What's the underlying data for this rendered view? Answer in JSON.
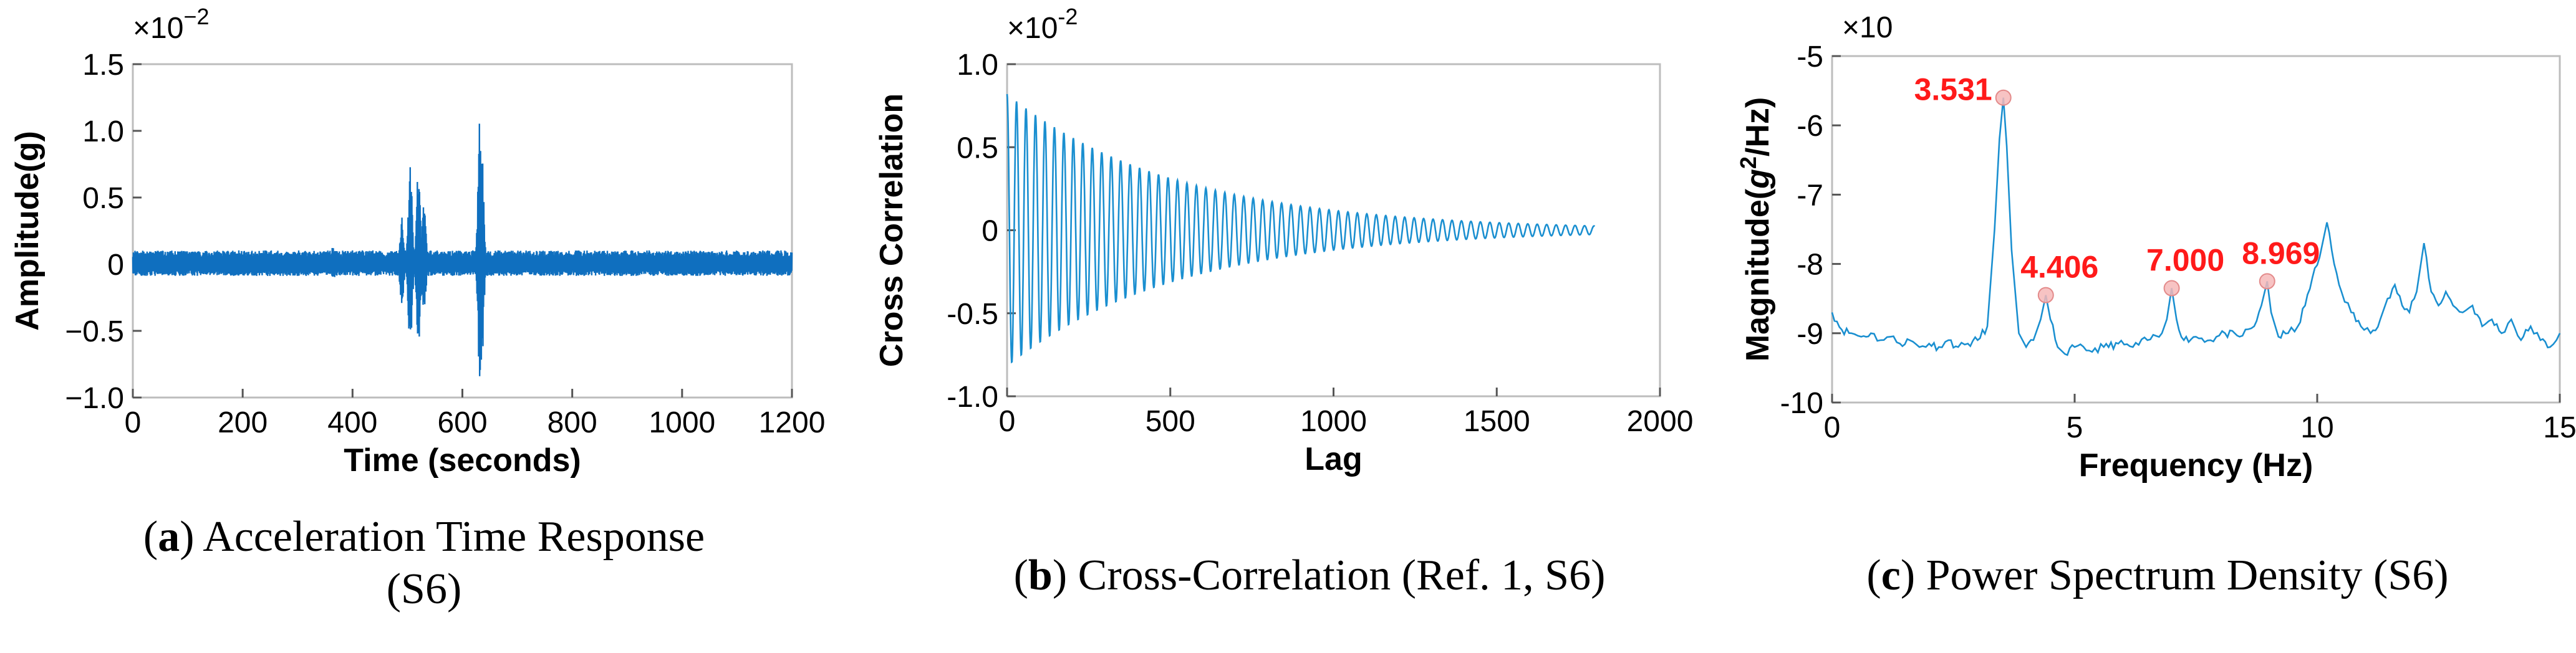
{
  "chart_data": [
    {
      "type": "line",
      "id": "a",
      "title": "",
      "xlabel": "Time (seconds)",
      "ylabel": "Amplitude(g)",
      "scale_label": "×10",
      "scale_exponent": "−2",
      "xlim": [
        0,
        1200
      ],
      "ylim": [
        -1.0,
        1.5
      ],
      "x_ticks": [
        0,
        200,
        400,
        600,
        800,
        1000,
        1200
      ],
      "x_tick_labels": [
        "0",
        "200",
        "400",
        "600",
        "800",
        "1000",
        "1200"
      ],
      "y_ticks": [
        1.5,
        1.0,
        0.5,
        0,
        -0.5,
        -1.0
      ],
      "y_tick_labels": [
        "1.5",
        "1.0",
        "0.5",
        "0",
        "−0.5",
        "−1.0"
      ],
      "series": [
        {
          "name": "Acceleration",
          "color": "#0f6fbf",
          "noise_band": 0.09,
          "bursts": [
            {
              "t": 365,
              "amp": 0.15
            },
            {
              "t": 490,
              "amp": 0.35
            },
            {
              "t": 505,
              "amp": 0.75
            },
            {
              "t": 520,
              "amp": 0.75
            },
            {
              "t": 530,
              "amp": 0.45
            },
            {
              "t": 628,
              "amp": 0.2
            },
            {
              "t": 632,
              "amp": 1.1
            },
            {
              "t": 635,
              "amp": 0.95
            }
          ]
        }
      ],
      "caption_label": "a",
      "caption_text": "Acceleration Time Response",
      "caption_text_2": "(S6)"
    },
    {
      "type": "line",
      "id": "b",
      "title": "",
      "xlabel": "Lag",
      "ylabel": "Cross Correlation",
      "scale_label": "×10",
      "scale_exponent": "-2",
      "xlim": [
        0,
        2000
      ],
      "ylim": [
        -1.0,
        1.0
      ],
      "x_ticks": [
        0,
        500,
        1000,
        1500,
        2000
      ],
      "x_tick_labels": [
        "0",
        "500",
        "1000",
        "1500",
        "2000"
      ],
      "y_ticks": [
        1.0,
        0.5,
        0,
        -0.5,
        -1.0
      ],
      "y_tick_labels": [
        "1.0",
        "0.5",
        "0",
        "-0.5",
        "-1.0"
      ],
      "series": [
        {
          "name": "Cross Correlation",
          "color": "#1a8fd0",
          "initial_amplitude": 0.82,
          "decay_constant": 520,
          "period": 29,
          "lag_end": 1800
        }
      ],
      "caption_label": "b",
      "caption_text": "Cross-Correlation (Ref. 1, S6)"
    },
    {
      "type": "line",
      "id": "c",
      "title": "",
      "xlabel": "Frequency (Hz)",
      "ylabel_main": "Magnitude(",
      "ylabel_g": "g",
      "ylabel_sup": "2",
      "ylabel_end": "/Hz)",
      "scale_label": "×10",
      "xlim": [
        0,
        15
      ],
      "ylim": [
        -10,
        -5
      ],
      "x_ticks": [
        0,
        5,
        10,
        15
      ],
      "x_tick_labels": [
        "0",
        "5",
        "10",
        "15"
      ],
      "y_ticks": [
        -5,
        -6,
        -7,
        -8,
        -9,
        -10
      ],
      "y_tick_labels": [
        "-5",
        "-6",
        "-7",
        "-8",
        "-9",
        "-10"
      ],
      "series": [
        {
          "name": "PSD",
          "color": "#1a8fd0",
          "points": [
            [
              0,
              -8.7
            ],
            [
              0.2,
              -8.95
            ],
            [
              0.4,
              -9.0
            ],
            [
              0.6,
              -9.05
            ],
            [
              0.8,
              -9.0
            ],
            [
              1.0,
              -9.1
            ],
            [
              1.2,
              -9.05
            ],
            [
              1.4,
              -9.15
            ],
            [
              1.6,
              -9.1
            ],
            [
              1.8,
              -9.2
            ],
            [
              2.0,
              -9.15
            ],
            [
              2.2,
              -9.2
            ],
            [
              2.4,
              -9.1
            ],
            [
              2.6,
              -9.2
            ],
            [
              2.8,
              -9.15
            ],
            [
              3.0,
              -9.1
            ],
            [
              3.2,
              -8.9
            ],
            [
              3.35,
              -7.5
            ],
            [
              3.45,
              -6.2
            ],
            [
              3.531,
              -5.6
            ],
            [
              3.6,
              -6.3
            ],
            [
              3.7,
              -7.8
            ],
            [
              3.85,
              -9.0
            ],
            [
              4.0,
              -9.2
            ],
            [
              4.15,
              -9.1
            ],
            [
              4.3,
              -8.8
            ],
            [
              4.406,
              -8.45
            ],
            [
              4.5,
              -8.8
            ],
            [
              4.65,
              -9.2
            ],
            [
              4.8,
              -9.3
            ],
            [
              5.0,
              -9.2
            ],
            [
              5.3,
              -9.25
            ],
            [
              5.6,
              -9.2
            ],
            [
              5.9,
              -9.15
            ],
            [
              6.2,
              -9.2
            ],
            [
              6.5,
              -9.1
            ],
            [
              6.8,
              -9.0
            ],
            [
              6.9,
              -8.8
            ],
            [
              7.0,
              -8.35
            ],
            [
              7.1,
              -8.8
            ],
            [
              7.25,
              -9.1
            ],
            [
              7.5,
              -9.05
            ],
            [
              7.8,
              -9.1
            ],
            [
              8.1,
              -9.0
            ],
            [
              8.4,
              -9.05
            ],
            [
              8.7,
              -8.9
            ],
            [
              8.85,
              -8.6
            ],
            [
              8.969,
              -8.25
            ],
            [
              9.05,
              -8.7
            ],
            [
              9.2,
              -9.05
            ],
            [
              9.4,
              -9.0
            ],
            [
              9.6,
              -8.9
            ],
            [
              9.75,
              -8.6
            ],
            [
              9.9,
              -8.2
            ],
            [
              10.05,
              -7.9
            ],
            [
              10.2,
              -7.4
            ],
            [
              10.35,
              -8.0
            ],
            [
              10.5,
              -8.4
            ],
            [
              10.7,
              -8.7
            ],
            [
              10.9,
              -8.9
            ],
            [
              11.1,
              -9.0
            ],
            [
              11.3,
              -8.8
            ],
            [
              11.45,
              -8.5
            ],
            [
              11.6,
              -8.3
            ],
            [
              11.75,
              -8.6
            ],
            [
              11.9,
              -8.7
            ],
            [
              12.05,
              -8.4
            ],
            [
              12.2,
              -7.7
            ],
            [
              12.35,
              -8.4
            ],
            [
              12.5,
              -8.6
            ],
            [
              12.65,
              -8.4
            ],
            [
              12.8,
              -8.6
            ],
            [
              13.0,
              -8.7
            ],
            [
              13.2,
              -8.6
            ],
            [
              13.4,
              -8.9
            ],
            [
              13.6,
              -8.8
            ],
            [
              13.8,
              -9.0
            ],
            [
              14.0,
              -8.8
            ],
            [
              14.2,
              -9.1
            ],
            [
              14.4,
              -8.9
            ],
            [
              14.6,
              -9.1
            ],
            [
              14.8,
              -9.2
            ],
            [
              15.0,
              -9.0
            ]
          ]
        }
      ],
      "peaks": [
        {
          "x": 3.531,
          "y": -5.6,
          "label": "3.531",
          "label_pos": "left"
        },
        {
          "x": 4.406,
          "y": -8.45,
          "label": "4.406",
          "label_pos": "above"
        },
        {
          "x": 7.0,
          "y": -8.35,
          "label": "7.000",
          "label_pos": "above"
        },
        {
          "x": 8.969,
          "y": -8.25,
          "label": "8.969",
          "label_pos": "above"
        }
      ],
      "caption_label": "c",
      "caption_text": "Power Spectrum Density (S6)"
    }
  ]
}
